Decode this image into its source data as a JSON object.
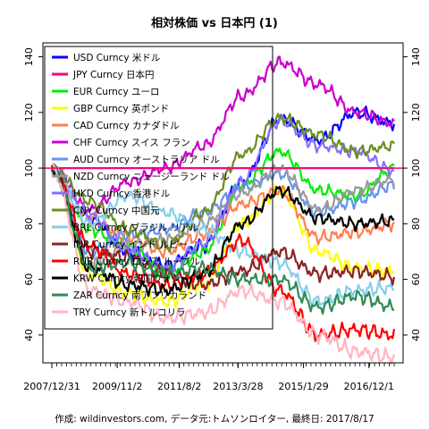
{
  "chart_data": {
    "type": "line",
    "title": "相対株価 vs 日本円 (1)",
    "caption": "作成: wildinvestors.com, データ元:トムソンロイター, 最終日: 2017/8/17",
    "x_tick_labels": [
      "2007/12/31",
      "2009/11/2",
      "2011/8/2",
      "2013/3/28",
      "2015/1/29",
      "2016/12/1"
    ],
    "x_ticks": [
      "2007/12/31",
      "2009/11/2",
      "2011/8/2",
      "2013/3/28",
      "2015/1/29",
      "2016/12/1"
    ],
    "x_range": [
      "2007/12/31",
      "2017/8/17"
    ],
    "ylim": [
      30,
      145
    ],
    "y_ticks": [
      40,
      60,
      80,
      100,
      120,
      140
    ],
    "reference_line": 100,
    "reference_color": "#ff0080",
    "legend_position": "top-left",
    "grid": false,
    "series": [
      {
        "name": "USD Curncy 米ドル",
        "color": "#0000ff",
        "values": [
          100,
          82,
          70,
          65,
          72,
          95,
          118,
          110,
          120,
          116
        ]
      },
      {
        "name": "JPY Curncy 日本円",
        "color": "#ff0080",
        "values": [
          100,
          100,
          100,
          100,
          100,
          100,
          100,
          100,
          100,
          100
        ]
      },
      {
        "name": "EUR Curncy ユーロ",
        "color": "#00ee00",
        "values": [
          100,
          78,
          72,
          62,
          70,
          94,
          106,
          92,
          90,
          100
        ]
      },
      {
        "name": "GBP Curncy 英ポンド",
        "color": "#ffff00",
        "values": [
          100,
          62,
          55,
          52,
          58,
          80,
          92,
          70,
          64,
          63
        ]
      },
      {
        "name": "CAD Curncy カナダドル",
        "color": "#ff7f50",
        "values": [
          100,
          82,
          75,
          70,
          76,
          87,
          92,
          75,
          77,
          80
        ]
      },
      {
        "name": "CHF Curncy スイス フラン",
        "color": "#cc00cc",
        "values": [
          100,
          85,
          95,
          100,
          108,
          126,
          138,
          130,
          120,
          116
        ]
      },
      {
        "name": "AUD Curncy オーストラリア ドル",
        "color": "#6495ed",
        "values": [
          100,
          70,
          76,
          78,
          84,
          93,
          98,
          84,
          88,
          94
        ]
      },
      {
        "name": "NZD Curncy ニュージーランド ドル",
        "color": "#9a9a9a",
        "values": [
          100,
          66,
          72,
          74,
          80,
          91,
          100,
          85,
          92,
          96
        ]
      },
      {
        "name": "HKD Curncy 香港ドル",
        "color": "#8470ff",
        "values": [
          100,
          83,
          71,
          64,
          73,
          95,
          117,
          108,
          106,
          99
        ]
      },
      {
        "name": "CNY Curncy 中国元",
        "color": "#6b8e23",
        "values": [
          100,
          88,
          78,
          72,
          84,
          105,
          118,
          112,
          106,
          108
        ]
      },
      {
        "name": "BRL Curncy ブラジル リアル",
        "color": "#87ceeb",
        "values": [
          100,
          80,
          90,
          84,
          78,
          70,
          66,
          52,
          56,
          57
        ]
      },
      {
        "name": "INR Curncy インド ルピー",
        "color": "#8b2323",
        "values": [
          100,
          70,
          68,
          62,
          58,
          63,
          70,
          62,
          63,
          61
        ]
      },
      {
        "name": "RUB Curncy ロシア ルーブル",
        "color": "#ff0000",
        "values": [
          100,
          72,
          62,
          58,
          62,
          74,
          56,
          40,
          42,
          40
        ]
      },
      {
        "name": "KRW Curncy 韓国ウォン",
        "color": "#000000",
        "values": [
          100,
          64,
          58,
          56,
          62,
          80,
          92,
          82,
          80,
          81
        ]
      },
      {
        "name": "ZAR Curncy 南アフリカランド",
        "color": "#2e8b57",
        "values": [
          100,
          64,
          66,
          62,
          64,
          60,
          60,
          50,
          54,
          50
        ]
      },
      {
        "name": "TRY Curncy 新トルコリラ",
        "color": "#ffb6c1",
        "values": [
          100,
          56,
          52,
          46,
          48,
          56,
          52,
          40,
          34,
          32
        ]
      }
    ]
  }
}
